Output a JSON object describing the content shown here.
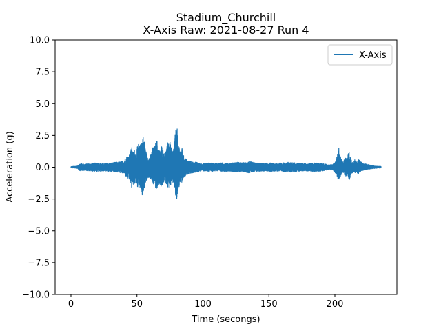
{
  "chart_data": {
    "type": "line",
    "title": "Stadium_Churchill",
    "subtitle": "X-Axis Raw: 2021-08-27 Run 4",
    "xlabel": "Time (secongs)",
    "ylabel": "Acceleration (g)",
    "xlim": [
      -12,
      247
    ],
    "ylim": [
      -10,
      10
    ],
    "xticks": [
      0,
      50,
      100,
      150,
      200
    ],
    "yticks": [
      -10.0,
      -7.5,
      -5.0,
      -2.5,
      0.0,
      2.5,
      5.0,
      7.5,
      10.0
    ],
    "xtick_labels": [
      "0",
      "50",
      "100",
      "150",
      "200"
    ],
    "ytick_labels": [
      "−10.0",
      "−7.5",
      "−5.0",
      "−2.5",
      "0.0",
      "2.5",
      "5.0",
      "7.5",
      "10.0"
    ],
    "grid": false,
    "legend_position": "top-right",
    "series": [
      {
        "name": "X-Axis",
        "color": "#1f77b4",
        "x_range": [
          0,
          235
        ],
        "envelope": {
          "t": [
            0,
            5,
            7,
            10,
            15,
            20,
            25,
            30,
            35,
            38,
            40,
            42,
            44,
            45,
            46,
            47,
            48,
            49,
            50,
            51,
            52,
            53,
            54,
            55,
            56,
            57,
            58,
            59,
            60,
            61,
            62,
            63,
            64,
            65,
            66,
            67,
            68,
            69,
            70,
            71,
            72,
            73,
            74,
            75,
            76,
            77,
            78,
            79,
            80,
            81,
            82,
            83,
            84,
            85,
            86,
            87,
            88,
            89,
            90,
            92,
            95,
            98,
            100,
            105,
            110,
            115,
            120,
            125,
            130,
            135,
            140,
            145,
            150,
            155,
            160,
            165,
            170,
            175,
            180,
            185,
            190,
            195,
            198,
            200,
            201,
            202,
            203,
            204,
            205,
            206,
            207,
            208,
            209,
            210,
            211,
            212,
            213,
            214,
            215,
            216,
            218,
            220,
            222,
            224,
            226,
            228,
            230,
            232,
            235
          ],
          "upper": [
            0.05,
            0.1,
            0.3,
            0.25,
            0.3,
            0.35,
            0.3,
            0.35,
            0.4,
            0.45,
            0.5,
            0.8,
            1.0,
            1.3,
            1.6,
            1.2,
            1.4,
            1.1,
            1.5,
            1.9,
            1.6,
            2.0,
            2.4,
            2.5,
            1.8,
            1.2,
            0.9,
            0.8,
            0.9,
            1.2,
            1.6,
            1.5,
            1.9,
            2.2,
            1.7,
            1.3,
            1.5,
            1.8,
            1.3,
            1.0,
            1.4,
            1.8,
            2.3,
            2.0,
            1.6,
            1.3,
            1.8,
            2.6,
            3.5,
            2.5,
            1.8,
            1.3,
            1.6,
            1.0,
            0.8,
            0.7,
            0.6,
            0.5,
            0.5,
            0.45,
            0.4,
            0.3,
            0.3,
            0.35,
            0.3,
            0.35,
            0.3,
            0.4,
            0.35,
            0.45,
            0.35,
            0.3,
            0.35,
            0.3,
            0.35,
            0.4,
            0.35,
            0.3,
            0.3,
            0.35,
            0.3,
            0.2,
            0.2,
            0.4,
            0.6,
            1.0,
            1.6,
            1.0,
            0.6,
            0.4,
            0.6,
            0.9,
            0.6,
            1.1,
            1.2,
            0.8,
            0.5,
            0.4,
            0.6,
            0.5,
            0.6,
            0.4,
            0.3,
            0.25,
            0.2,
            0.15,
            0.1,
            0.08,
            0.06
          ],
          "lower": [
            -0.05,
            -0.1,
            -0.3,
            -0.25,
            -0.3,
            -0.35,
            -0.3,
            -0.35,
            -0.4,
            -0.45,
            -0.5,
            -0.8,
            -1.0,
            -1.3,
            -1.7,
            -1.3,
            -1.5,
            -1.2,
            -1.4,
            -1.8,
            -1.5,
            -1.9,
            -2.3,
            -2.0,
            -1.6,
            -1.2,
            -0.9,
            -0.8,
            -0.9,
            -1.1,
            -1.5,
            -1.4,
            -1.6,
            -1.9,
            -1.6,
            -1.3,
            -1.5,
            -1.7,
            -1.3,
            -1.0,
            -1.3,
            -1.5,
            -1.7,
            -1.6,
            -1.4,
            -1.2,
            -1.5,
            -2.2,
            -2.9,
            -2.2,
            -1.6,
            -1.2,
            -1.4,
            -0.9,
            -0.8,
            -0.7,
            -0.6,
            -0.5,
            -0.5,
            -0.45,
            -0.4,
            -0.3,
            -0.3,
            -0.35,
            -0.3,
            -0.35,
            -0.3,
            -0.4,
            -0.35,
            -0.45,
            -0.35,
            -0.3,
            -0.35,
            -0.3,
            -0.35,
            -0.4,
            -0.35,
            -0.3,
            -0.3,
            -0.35,
            -0.3,
            -0.2,
            -0.2,
            -0.4,
            -0.6,
            -0.9,
            -1.2,
            -0.8,
            -0.5,
            -0.4,
            -0.5,
            -0.8,
            -0.6,
            -0.9,
            -1.1,
            -0.7,
            -0.5,
            -0.4,
            -0.5,
            -0.4,
            -0.5,
            -0.3,
            -0.25,
            -0.2,
            -0.15,
            -0.12,
            -0.1,
            -0.08,
            -0.06
          ]
        }
      }
    ]
  }
}
